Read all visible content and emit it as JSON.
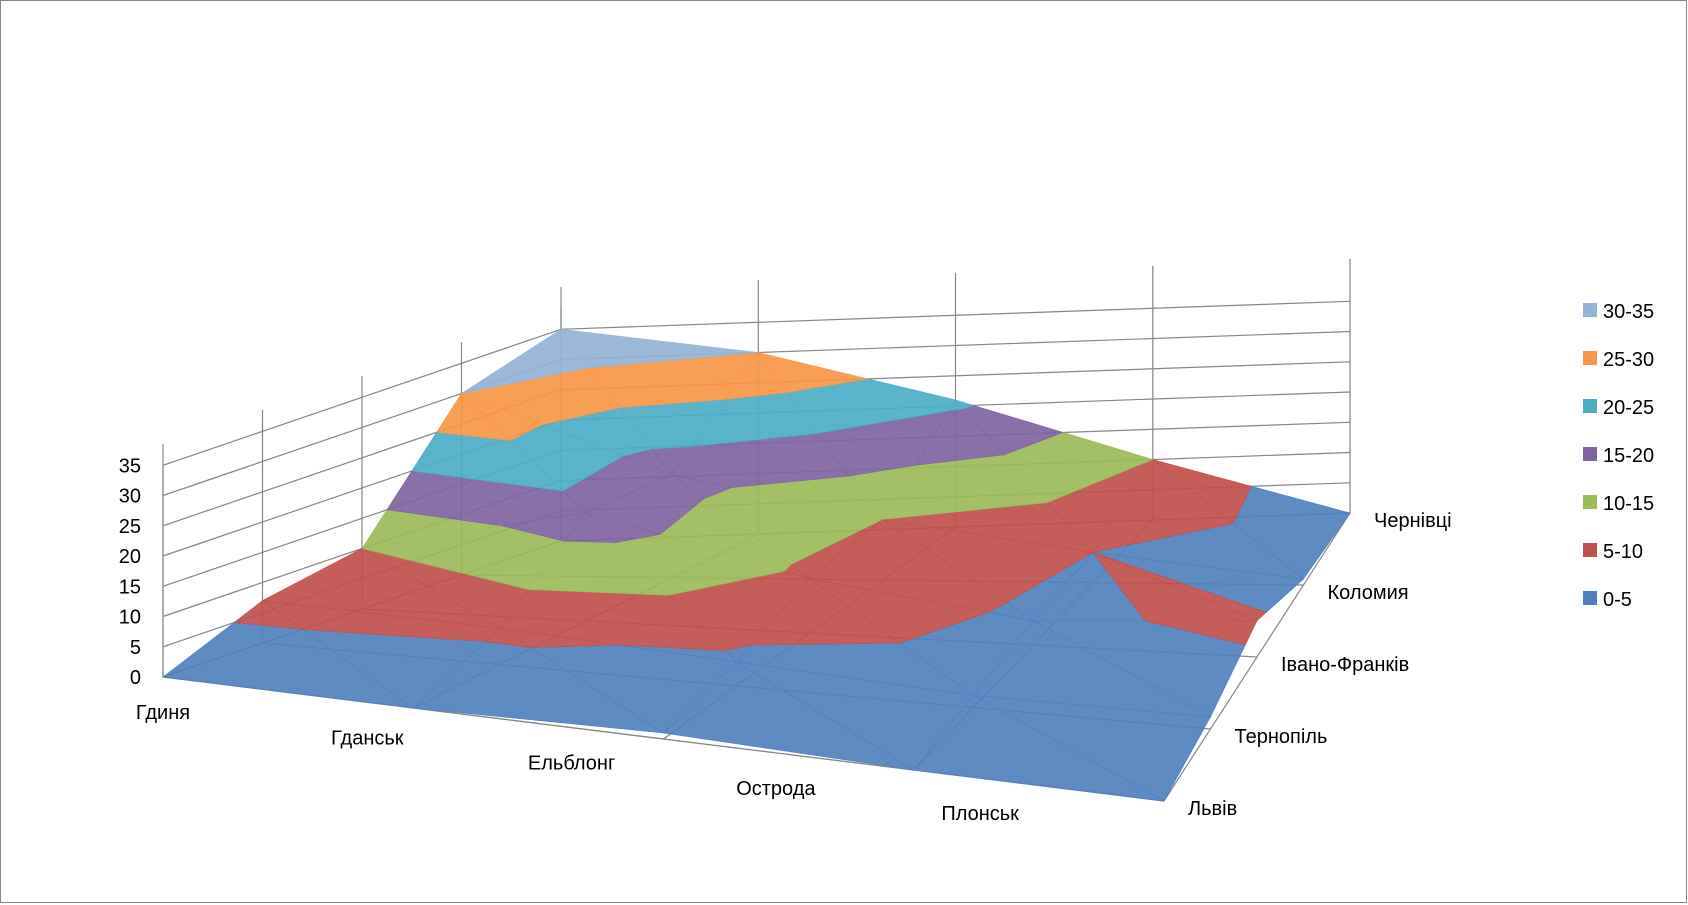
{
  "chart_data": {
    "type": "surface-3d",
    "title": "",
    "xlabel": "",
    "ylabel": "",
    "zlim": [
      0,
      35
    ],
    "z_ticks": [
      "0",
      "5",
      "10",
      "15",
      "20",
      "25",
      "30",
      "35"
    ],
    "categories": [
      "Гдиня",
      "Гданськ",
      "Ельблонг",
      "Острода",
      "Плонськ"
    ],
    "series": [
      {
        "name": "Львів",
        "values": [
          0,
          0,
          1,
          0,
          0
        ]
      },
      {
        "name": "Тернопіль",
        "values": [
          7,
          6,
          4,
          2,
          2
        ]
      },
      {
        "name": "Івано-Франків",
        "values": [
          10,
          18,
          9,
          4,
          6
        ]
      },
      {
        "name": "Коломия",
        "values": [
          30,
          17,
          10,
          5,
          1
        ]
      },
      {
        "name": "Чернівці",
        "values": [
          35,
          30,
          21,
          10,
          0
        ]
      }
    ],
    "bands": [
      {
        "name": "30-35",
        "color": "#95B3D7"
      },
      {
        "name": "25-30",
        "color": "#F79646"
      },
      {
        "name": "20-25",
        "color": "#4BACC6"
      },
      {
        "name": "15-20",
        "color": "#8064A2"
      },
      {
        "name": "10-15",
        "color": "#9BBB59"
      },
      {
        "name": "5-10",
        "color": "#C0504D"
      },
      {
        "name": "0-5",
        "color": "#4F81BD"
      }
    ],
    "legend_position": "right",
    "grid": true
  }
}
